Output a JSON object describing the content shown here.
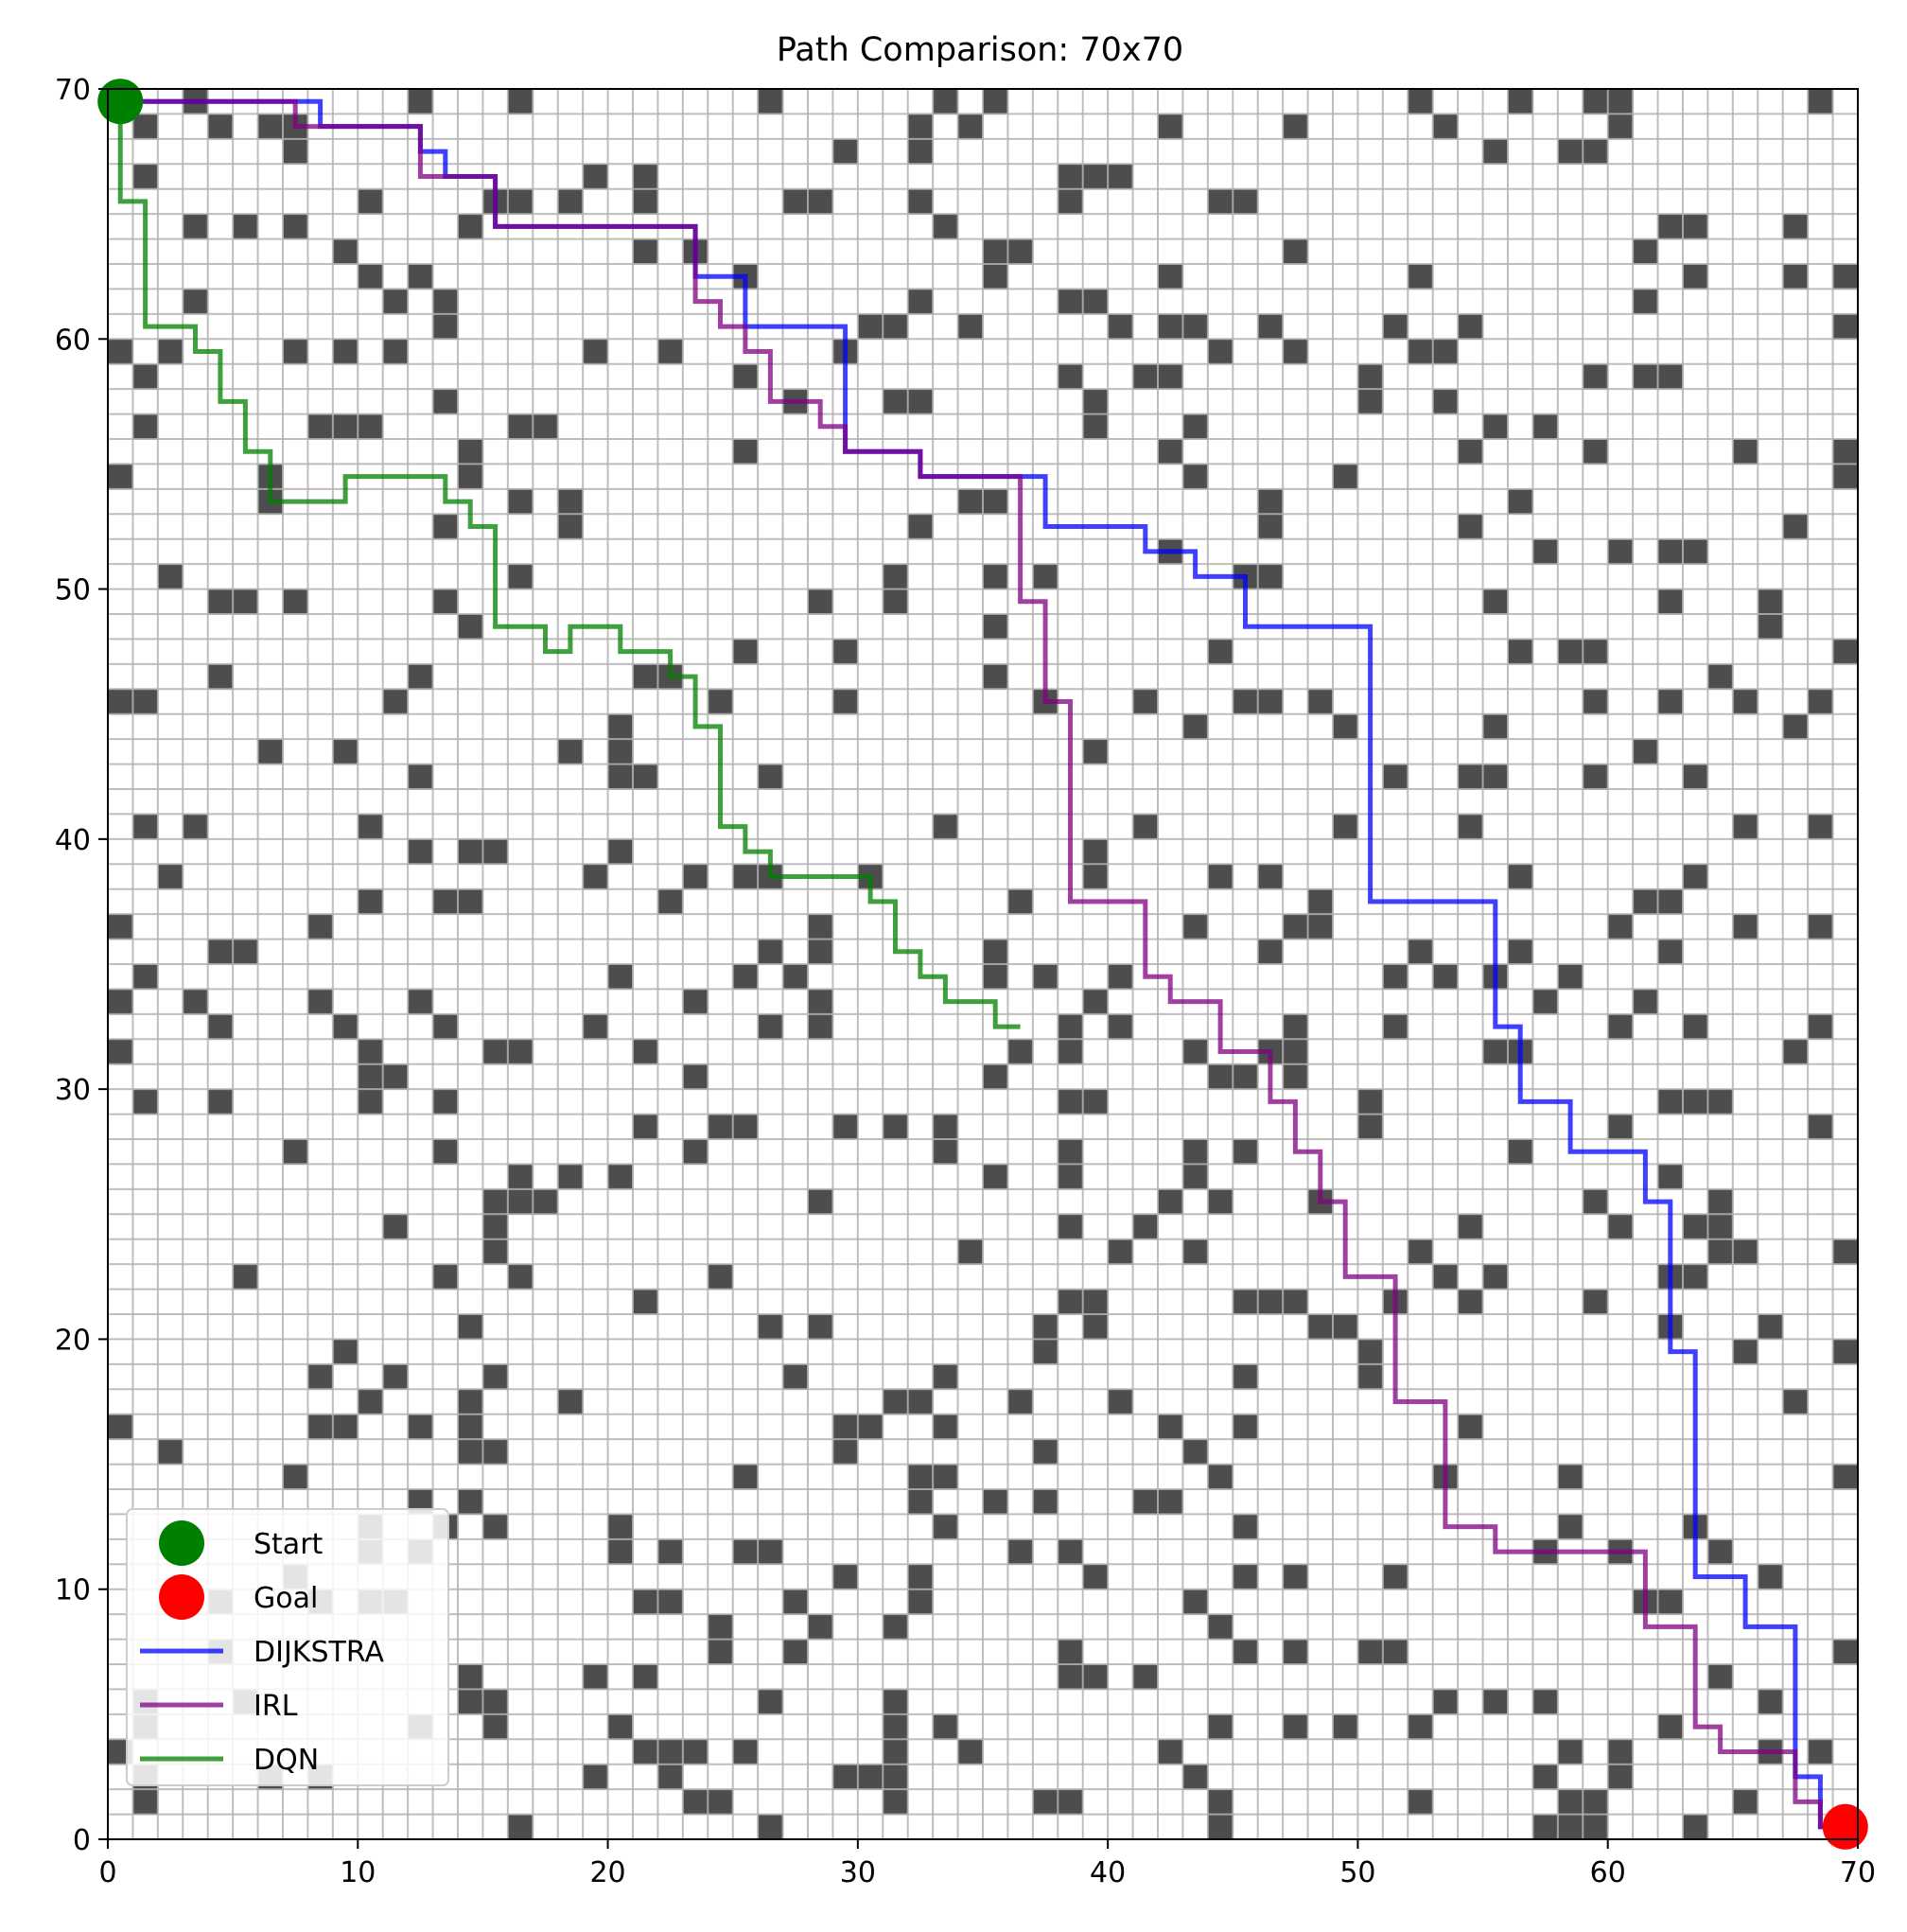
{
  "chart_data": {
    "type": "line",
    "title": "Path Comparison: 70x70",
    "xlabel": "",
    "ylabel": "",
    "xlim": [
      0,
      70
    ],
    "ylim": [
      0,
      70
    ],
    "xticks": [
      0,
      10,
      20,
      30,
      40,
      50,
      60,
      70
    ],
    "yticks": [
      0,
      10,
      20,
      30,
      40,
      50,
      60,
      70
    ],
    "grid": "cell grid lines at every integer",
    "background": "occupancy grid map, 70x70 cells, obstacles drawn dark gray (#4d4d4d)",
    "obstacle_density": 0.12,
    "legend_position": "lower left",
    "legend": [
      {
        "label": "Start",
        "marker": "circle",
        "color": "#008000"
      },
      {
        "label": "Goal",
        "marker": "circle",
        "color": "#ff0000"
      },
      {
        "label": "DIJKSTRA",
        "marker": "line",
        "color": "#0000ff"
      },
      {
        "label": "IRL",
        "marker": "line",
        "color": "#800080"
      },
      {
        "label": "DQN",
        "marker": "line",
        "color": "#008000"
      }
    ],
    "points": [
      {
        "name": "Start",
        "x": 0.5,
        "y": 69.5,
        "color": "#008000"
      },
      {
        "name": "Goal",
        "x": 69.5,
        "y": 0.5,
        "color": "#ff0000"
      }
    ],
    "series": [
      {
        "name": "DIJKSTRA",
        "color": "#0000ff",
        "points": [
          [
            0.5,
            69.5
          ],
          [
            8.5,
            69.5
          ],
          [
            8.5,
            68.5
          ],
          [
            12.5,
            68.5
          ],
          [
            12.5,
            67.5
          ],
          [
            13.5,
            67.5
          ],
          [
            13.5,
            66.5
          ],
          [
            15.5,
            66.5
          ],
          [
            15.5,
            64.5
          ],
          [
            23.5,
            64.5
          ],
          [
            23.5,
            62.5
          ],
          [
            25.5,
            62.5
          ],
          [
            25.5,
            60.5
          ],
          [
            29.5,
            60.5
          ],
          [
            29.5,
            55.5
          ],
          [
            32.5,
            55.5
          ],
          [
            32.5,
            54.5
          ],
          [
            37.5,
            54.5
          ],
          [
            37.5,
            52.5
          ],
          [
            41.5,
            52.5
          ],
          [
            41.5,
            51.5
          ],
          [
            43.5,
            51.5
          ],
          [
            43.5,
            50.5
          ],
          [
            45.5,
            50.5
          ],
          [
            45.5,
            48.5
          ],
          [
            50.5,
            48.5
          ],
          [
            50.5,
            37.5
          ],
          [
            55.5,
            37.5
          ],
          [
            55.5,
            32.5
          ],
          [
            56.5,
            32.5
          ],
          [
            56.5,
            29.5
          ],
          [
            58.5,
            29.5
          ],
          [
            58.5,
            27.5
          ],
          [
            61.5,
            27.5
          ],
          [
            61.5,
            25.5
          ],
          [
            62.5,
            25.5
          ],
          [
            62.5,
            19.5
          ],
          [
            63.5,
            19.5
          ],
          [
            63.5,
            10.5
          ],
          [
            65.5,
            10.5
          ],
          [
            65.5,
            8.5
          ],
          [
            67.5,
            8.5
          ],
          [
            67.5,
            2.5
          ],
          [
            68.5,
            2.5
          ],
          [
            68.5,
            0.5
          ],
          [
            69.5,
            0.5
          ]
        ]
      },
      {
        "name": "IRL",
        "color": "#800080",
        "points": [
          [
            0.5,
            69.5
          ],
          [
            7.5,
            69.5
          ],
          [
            7.5,
            68.5
          ],
          [
            12.5,
            68.5
          ],
          [
            12.5,
            66.5
          ],
          [
            15.5,
            66.5
          ],
          [
            15.5,
            64.5
          ],
          [
            23.5,
            64.5
          ],
          [
            23.5,
            61.5
          ],
          [
            24.5,
            61.5
          ],
          [
            24.5,
            60.5
          ],
          [
            25.5,
            60.5
          ],
          [
            25.5,
            59.5
          ],
          [
            26.5,
            59.5
          ],
          [
            26.5,
            57.5
          ],
          [
            28.5,
            57.5
          ],
          [
            28.5,
            56.5
          ],
          [
            29.5,
            56.5
          ],
          [
            29.5,
            55.5
          ],
          [
            32.5,
            55.5
          ],
          [
            32.5,
            54.5
          ],
          [
            36.5,
            54.5
          ],
          [
            36.5,
            49.5
          ],
          [
            37.5,
            49.5
          ],
          [
            37.5,
            45.5
          ],
          [
            38.5,
            45.5
          ],
          [
            38.5,
            37.5
          ],
          [
            41.5,
            37.5
          ],
          [
            41.5,
            34.5
          ],
          [
            42.5,
            34.5
          ],
          [
            42.5,
            33.5
          ],
          [
            44.5,
            33.5
          ],
          [
            44.5,
            31.5
          ],
          [
            46.5,
            31.5
          ],
          [
            46.5,
            29.5
          ],
          [
            47.5,
            29.5
          ],
          [
            47.5,
            27.5
          ],
          [
            48.5,
            27.5
          ],
          [
            48.5,
            25.5
          ],
          [
            49.5,
            25.5
          ],
          [
            49.5,
            22.5
          ],
          [
            51.5,
            22.5
          ],
          [
            51.5,
            17.5
          ],
          [
            53.5,
            17.5
          ],
          [
            53.5,
            12.5
          ],
          [
            55.5,
            12.5
          ],
          [
            55.5,
            11.5
          ],
          [
            61.5,
            11.5
          ],
          [
            61.5,
            8.5
          ],
          [
            63.5,
            8.5
          ],
          [
            63.5,
            4.5
          ],
          [
            64.5,
            4.5
          ],
          [
            64.5,
            3.5
          ],
          [
            67.5,
            3.5
          ],
          [
            67.5,
            1.5
          ],
          [
            68.5,
            1.5
          ],
          [
            68.5,
            0.5
          ],
          [
            69.5,
            0.5
          ]
        ]
      },
      {
        "name": "DQN",
        "color": "#008000",
        "points": [
          [
            0.5,
            69.5
          ],
          [
            0.5,
            65.5
          ],
          [
            1.5,
            65.5
          ],
          [
            1.5,
            60.5
          ],
          [
            3.5,
            60.5
          ],
          [
            3.5,
            59.5
          ],
          [
            4.5,
            59.5
          ],
          [
            4.5,
            57.5
          ],
          [
            5.5,
            57.5
          ],
          [
            5.5,
            55.5
          ],
          [
            6.5,
            55.5
          ],
          [
            6.5,
            53.5
          ],
          [
            9.5,
            53.5
          ],
          [
            9.5,
            54.5
          ],
          [
            13.5,
            54.5
          ],
          [
            13.5,
            53.5
          ],
          [
            14.5,
            53.5
          ],
          [
            14.5,
            52.5
          ],
          [
            15.5,
            52.5
          ],
          [
            15.5,
            48.5
          ],
          [
            17.5,
            48.5
          ],
          [
            17.5,
            47.5
          ],
          [
            18.5,
            47.5
          ],
          [
            18.5,
            48.5
          ],
          [
            20.5,
            48.5
          ],
          [
            20.5,
            47.5
          ],
          [
            22.5,
            47.5
          ],
          [
            22.5,
            46.5
          ],
          [
            23.5,
            46.5
          ],
          [
            23.5,
            44.5
          ],
          [
            24.5,
            44.5
          ],
          [
            24.5,
            40.5
          ],
          [
            25.5,
            40.5
          ],
          [
            25.5,
            39.5
          ],
          [
            26.5,
            39.5
          ],
          [
            26.5,
            38.5
          ],
          [
            30.5,
            38.5
          ],
          [
            30.5,
            37.5
          ],
          [
            31.5,
            37.5
          ],
          [
            31.5,
            35.5
          ],
          [
            32.5,
            35.5
          ],
          [
            32.5,
            34.5
          ],
          [
            33.5,
            34.5
          ],
          [
            33.5,
            33.5
          ],
          [
            35.5,
            33.5
          ],
          [
            35.5,
            32.5
          ],
          [
            36.5,
            32.5
          ]
        ]
      }
    ]
  }
}
